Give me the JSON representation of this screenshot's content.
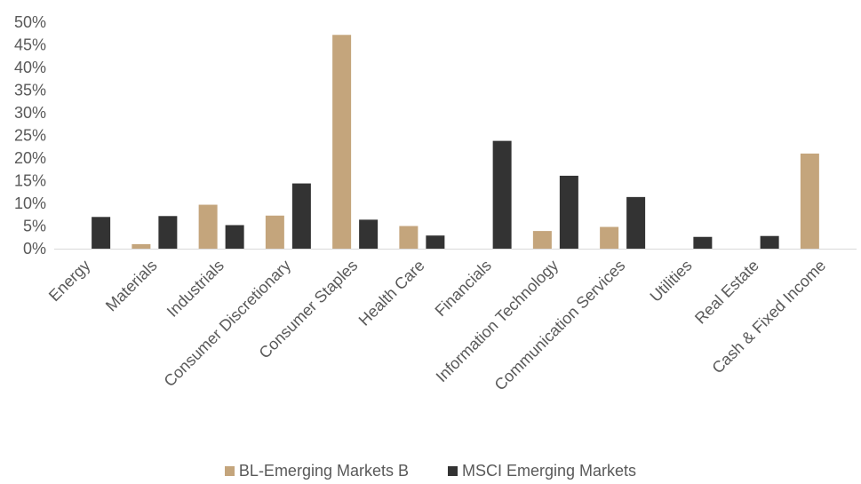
{
  "chart_data": {
    "type": "bar",
    "title": "",
    "xlabel": "",
    "ylabel": "",
    "ylim": [
      0,
      50
    ],
    "yticks": [
      "0%",
      "5%",
      "10%",
      "15%",
      "20%",
      "25%",
      "30%",
      "35%",
      "40%",
      "45%",
      "50%"
    ],
    "grid": false,
    "legend_position": "bottom",
    "categories": [
      "Energy",
      "Materials",
      "Industrials",
      "Consumer Discretionary",
      "Consumer Staples",
      "Health Care",
      "Financials",
      "Information Technology",
      "Communication Services",
      "Utilities",
      "Real Estate",
      "Cash & Fixed Income"
    ],
    "series": [
      {
        "name": "BL-Emerging Markets B",
        "color": "#c4a57c",
        "values": [
          0,
          1.0,
          9.7,
          7.3,
          47.2,
          5.0,
          0,
          3.9,
          4.8,
          0,
          0,
          21.0
        ]
      },
      {
        "name": "MSCI Emerging Markets",
        "color": "#333333",
        "values": [
          7.0,
          7.2,
          5.2,
          14.4,
          6.4,
          2.9,
          23.8,
          16.1,
          11.4,
          2.6,
          2.8,
          0
        ]
      }
    ]
  }
}
